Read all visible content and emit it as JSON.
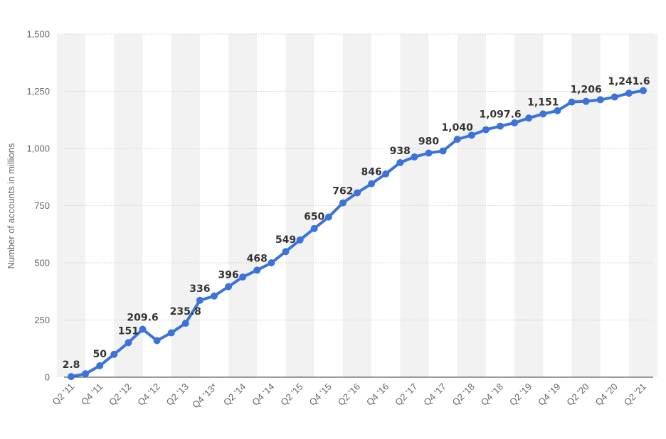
{
  "chart_data": {
    "type": "line",
    "ylabel": "Number of accounts in millions",
    "xlabel": "",
    "ylim": [
      0,
      1500
    ],
    "yticks": [
      0,
      250,
      500,
      750,
      1000,
      1250,
      1500
    ],
    "ytick_labels": [
      "0",
      "250",
      "500",
      "750",
      "1,000",
      "1,250",
      "1,500"
    ],
    "grid": true,
    "accent_color": "#3b73d9",
    "band_color": "#f2f2f2",
    "categories": [
      "Q2 '11",
      "Q3 '11",
      "Q4 '11",
      "Q1 '12",
      "Q2 '12",
      "Q3 '12",
      "Q4 '12",
      "Q1 '13",
      "Q2 '13",
      "Q3 '13",
      "Q4 '13*",
      "Q1 '14",
      "Q2 '14",
      "Q3 '14",
      "Q4 '14",
      "Q1 '15",
      "Q2 '15",
      "Q3 '15",
      "Q4 '15",
      "Q1 '16",
      "Q2 '16",
      "Q3 '16",
      "Q4 '16",
      "Q1 '17",
      "Q2 '17",
      "Q3 '17",
      "Q4 '17",
      "Q1 '18",
      "Q2 '18",
      "Q3 '18",
      "Q4 '18",
      "Q1 '19",
      "Q2 '19",
      "Q3 '19",
      "Q4 '19",
      "Q1 '20",
      "Q2 '20",
      "Q3 '20",
      "Q4 '20",
      "Q1 '21",
      "Q2 '21"
    ],
    "x_tick_labels": [
      "Q2 '11",
      "Q4 '11",
      "Q2 '12",
      "Q4 '12",
      "Q2 '13",
      "Q4 '13*",
      "Q2 '14",
      "Q4 '14",
      "Q2 '15",
      "Q4 '15",
      "Q2 '16",
      "Q4 '16",
      "Q2 '17",
      "Q4 '17",
      "Q2 '18",
      "Q4 '18",
      "Q2 '19",
      "Q4 '19",
      "Q2 '20",
      "Q4 '20",
      "Q2 '21"
    ],
    "values": [
      2.8,
      15,
      50,
      100,
      151,
      209.6,
      160,
      194,
      235.8,
      336,
      355,
      396,
      438,
      468,
      500,
      549,
      600,
      650,
      700,
      762,
      806,
      846,
      889,
      938,
      963,
      980,
      989,
      1040,
      1058,
      1082,
      1097.6,
      1112,
      1133,
      1151,
      1165,
      1203,
      1206,
      1213,
      1225,
      1241.6,
      1253
    ],
    "data_labels": [
      {
        "index": 0,
        "text": "2.8"
      },
      {
        "index": 2,
        "text": "50"
      },
      {
        "index": 4,
        "text": "151"
      },
      {
        "index": 5,
        "text": "209.6"
      },
      {
        "index": 8,
        "text": "235.8"
      },
      {
        "index": 9,
        "text": "336"
      },
      {
        "index": 11,
        "text": "396"
      },
      {
        "index": 13,
        "text": "468"
      },
      {
        "index": 15,
        "text": "549"
      },
      {
        "index": 17,
        "text": "650"
      },
      {
        "index": 19,
        "text": "762"
      },
      {
        "index": 21,
        "text": "846"
      },
      {
        "index": 23,
        "text": "938"
      },
      {
        "index": 25,
        "text": "980"
      },
      {
        "index": 27,
        "text": "1,040"
      },
      {
        "index": 30,
        "text": "1,097.6"
      },
      {
        "index": 33,
        "text": "1,151"
      },
      {
        "index": 36,
        "text": "1,206"
      },
      {
        "index": 39,
        "text": "1,241.6"
      }
    ]
  }
}
